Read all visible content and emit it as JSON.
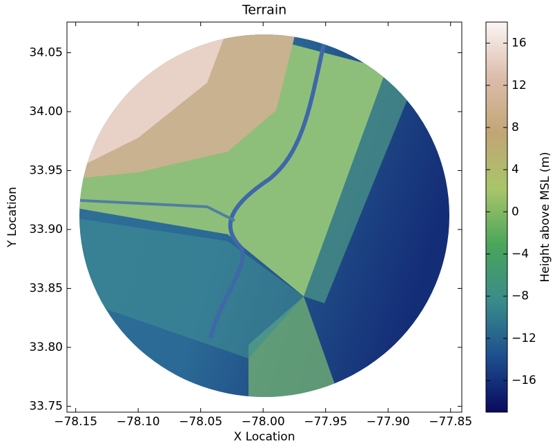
{
  "chart_data": {
    "type": "tripcolor",
    "title": "Terrain",
    "x_label": "X Location",
    "y_label": "Y Location",
    "colorbar_label": "Height above MSL (m)",
    "xlim": [
      -78.157,
      -77.841
    ],
    "ylim": [
      33.745,
      34.076
    ],
    "clim": [
      -19,
      18
    ],
    "xticks": [
      {
        "value": -78.15,
        "label": "−78.15"
      },
      {
        "value": -78.1,
        "label": "−78.10"
      },
      {
        "value": -78.05,
        "label": "−78.05"
      },
      {
        "value": -78,
        "label": "−78.00"
      },
      {
        "value": -77.95,
        "label": "−77.95"
      },
      {
        "value": -77.9,
        "label": "−77.90"
      },
      {
        "value": -77.85,
        "label": "−77.85"
      }
    ],
    "yticks": [
      33.75,
      {
        "value": 33.8,
        "label": "33.80"
      },
      33.85,
      {
        "value": 33.9,
        "label": "33.90"
      },
      33.95,
      {
        "value": 34,
        "label": "34.00"
      },
      34.05
    ],
    "cticks": [
      {
        "value": -16,
        "label": "−16"
      },
      {
        "value": -12,
        "label": "−12"
      },
      {
        "value": -8,
        "label": "−8"
      },
      {
        "value": -4,
        "label": "−4"
      },
      0,
      4,
      8,
      12,
      16
    ],
    "colormap": [
      "#0a0a5e",
      "#1d4f8f",
      "#3a8c8a",
      "#4aa55a",
      "#a9c56a",
      "#c2a575",
      "#dcbcaa",
      "#fbf5f5"
    ]
  }
}
